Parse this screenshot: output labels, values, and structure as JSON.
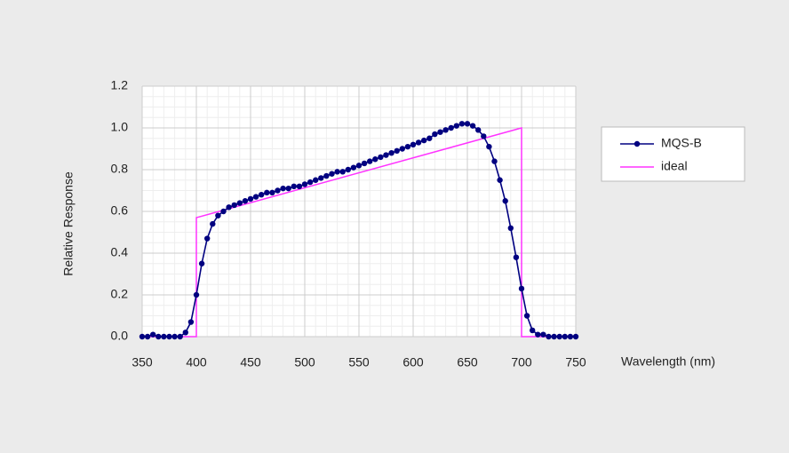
{
  "chart_data": {
    "type": "line",
    "ylabel": "Relative Response",
    "xlabel": "Wavelength (nm)",
    "xlim": [
      350,
      750
    ],
    "xticks": [
      350,
      400,
      450,
      500,
      550,
      600,
      650,
      700,
      750
    ],
    "ylim": [
      0,
      1.2
    ],
    "yticks": [
      {
        "value": 0,
        "label": "0.0"
      },
      0.2,
      0.4,
      0.6,
      0.8,
      {
        "value": 1,
        "label": "1.0"
      },
      1.2
    ],
    "grid": true,
    "legend": "right",
    "series": [
      {
        "name": "MQS-B",
        "color": "#000080",
        "marker": true,
        "x": [
          350,
          355,
          360,
          365,
          370,
          375,
          380,
          385,
          390,
          395,
          400,
          405,
          410,
          415,
          420,
          425,
          430,
          435,
          440,
          445,
          450,
          455,
          460,
          465,
          470,
          475,
          480,
          485,
          490,
          495,
          500,
          505,
          510,
          515,
          520,
          525,
          530,
          535,
          540,
          545,
          550,
          555,
          560,
          565,
          570,
          575,
          580,
          585,
          590,
          595,
          600,
          605,
          610,
          615,
          620,
          625,
          630,
          635,
          640,
          645,
          650,
          655,
          660,
          665,
          670,
          675,
          680,
          685,
          690,
          695,
          700,
          705,
          710,
          715,
          720,
          725,
          730,
          735,
          740,
          745,
          750
        ],
        "values": [
          0.0,
          0.0,
          0.01,
          0.0,
          0.0,
          0.0,
          0.0,
          0.0,
          0.02,
          0.07,
          0.2,
          0.35,
          0.47,
          0.54,
          0.58,
          0.6,
          0.62,
          0.63,
          0.64,
          0.65,
          0.66,
          0.67,
          0.68,
          0.69,
          0.69,
          0.7,
          0.71,
          0.71,
          0.72,
          0.72,
          0.73,
          0.74,
          0.75,
          0.76,
          0.77,
          0.78,
          0.79,
          0.79,
          0.8,
          0.81,
          0.82,
          0.83,
          0.84,
          0.85,
          0.86,
          0.87,
          0.88,
          0.89,
          0.9,
          0.91,
          0.92,
          0.93,
          0.94,
          0.95,
          0.97,
          0.98,
          0.99,
          1.0,
          1.01,
          1.02,
          1.02,
          1.01,
          0.99,
          0.96,
          0.91,
          0.84,
          0.75,
          0.65,
          0.52,
          0.38,
          0.23,
          0.1,
          0.03,
          0.01,
          0.01,
          0.0,
          0.0,
          0.0,
          0.0,
          0.0,
          0.0
        ]
      },
      {
        "name": "ideal",
        "color": "#ff33ff",
        "marker": false,
        "x": [
          350,
          400,
          400,
          700,
          700,
          750
        ],
        "values": [
          0,
          0,
          0.57,
          1.0,
          0,
          0
        ]
      }
    ]
  }
}
